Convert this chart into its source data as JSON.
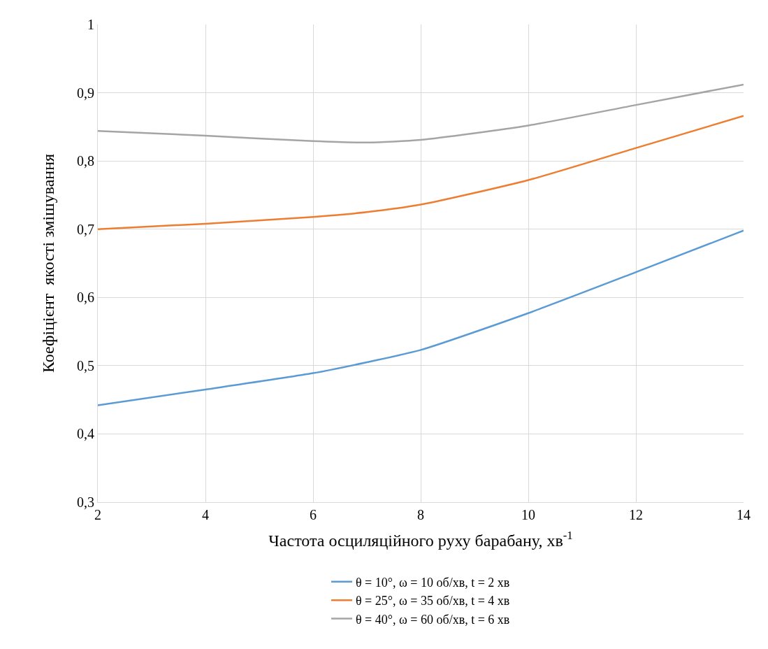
{
  "chart_data": {
    "type": "line",
    "xlabel": "Частота осциляційного руху барабану, хв$^{-1}$",
    "ylabel": "Коефіцієнт  якості змішування",
    "x": [
      2,
      4,
      6,
      7,
      8,
      10,
      12,
      14
    ],
    "series": [
      {
        "name": "θ = 10°, ω = 10 об/хв, t = 2 хв",
        "color": "#5b9bd5",
        "values": [
          0.442,
          0.465,
          0.489,
          0.505,
          0.523,
          0.577,
          0.637,
          0.698
        ]
      },
      {
        "name": "θ = 25°, ω = 35 об/хв, t = 4 хв",
        "color": "#ed7d31",
        "values": [
          0.7,
          0.708,
          0.718,
          0.725,
          0.736,
          0.772,
          0.819,
          0.866
        ]
      },
      {
        "name": "θ = 40°, ω = 60 об/хв, t = 6 хв",
        "color": "#a5a5a5",
        "values": [
          0.844,
          0.837,
          0.829,
          0.827,
          0.831,
          0.852,
          0.882,
          0.912
        ]
      }
    ],
    "xlim": [
      2,
      14
    ],
    "xticks": [
      2,
      4,
      6,
      8,
      10,
      12,
      14
    ],
    "ylim": [
      0.3,
      1
    ],
    "yticks": [
      {
        "value": 0.3,
        "label": "0,3"
      },
      {
        "value": 0.4,
        "label": "0,4"
      },
      {
        "value": 0.5,
        "label": "0,5"
      },
      {
        "value": 0.6,
        "label": "0,6"
      },
      {
        "value": 0.7,
        "label": "0,7"
      },
      {
        "value": 0.8,
        "label": "0,8"
      },
      {
        "value": 0.9,
        "label": "0,9"
      },
      {
        "value": 1,
        "label": "1"
      }
    ],
    "grid": true,
    "legend": "bottom",
    "marker": "none",
    "line_style": "solid"
  }
}
